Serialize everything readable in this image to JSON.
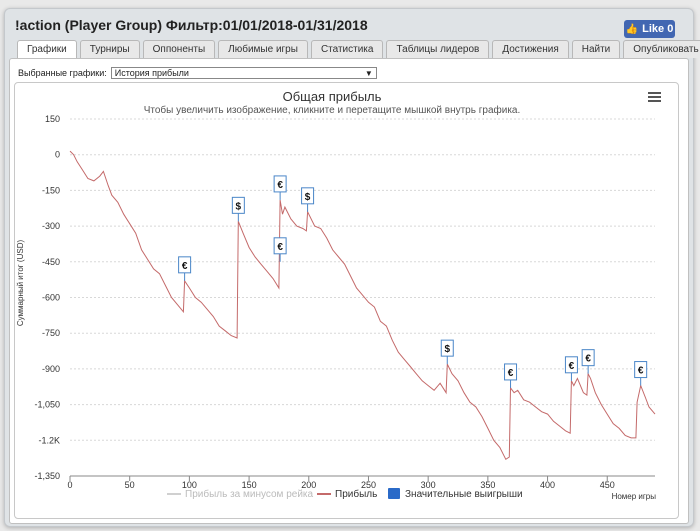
{
  "window": {
    "title": "!action (Player Group) Фильтр:01/01/2018-01/31/2018",
    "like_label": "Like 0"
  },
  "tabs": [
    {
      "label": "Графики",
      "active": true
    },
    {
      "label": "Турниры"
    },
    {
      "label": "Оппоненты"
    },
    {
      "label": "Любимые игры"
    },
    {
      "label": "Статистика"
    },
    {
      "label": "Таблицы лидеров"
    },
    {
      "label": "Достижения"
    },
    {
      "label": "Найти"
    },
    {
      "label": "Опубликовать"
    }
  ],
  "graph_select": {
    "label": "Выбранные графики:",
    "value": "История прибыли"
  },
  "chart_data": {
    "type": "line",
    "title": "Общая прибыль",
    "subtitle": "Чтобы увеличить изображение, кликните и перетащите мышкой внутрь графика.",
    "xlabel": "Номер игры",
    "ylabel": "Суммарный итог (USD)",
    "xlim": [
      0,
      490
    ],
    "ylim": [
      -1350,
      150
    ],
    "x_ticks": [
      0,
      50,
      100,
      150,
      200,
      250,
      300,
      350,
      400,
      450
    ],
    "y_ticks": [
      150,
      0,
      -150,
      -300,
      -450,
      -600,
      -750,
      -900,
      -1050,
      -1200,
      -1350
    ],
    "y_tick_labels": [
      "150",
      "0",
      "-150",
      "-300",
      "-450",
      "-600",
      "-750",
      "-900",
      "-1,050",
      "-1.2K",
      "-1,350"
    ],
    "grid": true,
    "legend_position": "bottom",
    "legend": [
      "Прибыль за минусом рейка",
      "Прибыль",
      "Значительные выигрыши"
    ],
    "series": [
      {
        "name": "Прибыль",
        "color": "#c46a6a",
        "x": [
          0,
          3,
          6,
          10,
          15,
          20,
          25,
          28,
          32,
          35,
          40,
          45,
          50,
          55,
          60,
          65,
          70,
          75,
          80,
          85,
          90,
          95,
          96,
          100,
          105,
          110,
          115,
          120,
          125,
          130,
          135,
          140,
          141,
          145,
          150,
          155,
          160,
          165,
          170,
          175,
          176,
          178,
          180,
          185,
          190,
          195,
          198,
          199,
          205,
          210,
          215,
          220,
          225,
          230,
          235,
          240,
          245,
          250,
          255,
          260,
          265,
          270,
          275,
          280,
          285,
          290,
          295,
          300,
          305,
          310,
          315,
          316,
          320,
          325,
          330,
          335,
          340,
          345,
          350,
          355,
          360,
          365,
          368,
          369,
          372,
          375,
          380,
          385,
          390,
          395,
          400,
          405,
          410,
          415,
          419,
          420,
          422,
          425,
          430,
          433,
          434,
          436,
          440,
          445,
          450,
          455,
          460,
          465,
          470,
          474,
          475,
          478,
          482,
          485,
          490
        ],
        "y": [
          15,
          0,
          -30,
          -60,
          -100,
          -110,
          -90,
          -70,
          -130,
          -170,
          -200,
          -250,
          -290,
          -330,
          -400,
          -440,
          -480,
          -500,
          -550,
          -600,
          -630,
          -660,
          -530,
          -560,
          -600,
          -620,
          -650,
          -680,
          -720,
          -740,
          -760,
          -770,
          -280,
          -330,
          -390,
          -430,
          -460,
          -490,
          -520,
          -560,
          -190,
          -250,
          -220,
          -270,
          -300,
          -310,
          -320,
          -240,
          -300,
          -310,
          -350,
          -400,
          -430,
          -460,
          -510,
          -560,
          -590,
          -620,
          -640,
          -700,
          -720,
          -780,
          -830,
          -860,
          -890,
          -920,
          -950,
          -970,
          -990,
          -960,
          -1000,
          -880,
          -920,
          -950,
          -1000,
          -1040,
          -1060,
          -1100,
          -1150,
          -1200,
          -1230,
          -1280,
          -1270,
          -980,
          -1000,
          -990,
          -1030,
          -1040,
          -1060,
          -1080,
          -1090,
          -1120,
          -1140,
          -1160,
          -1170,
          -950,
          -970,
          -940,
          -1000,
          -1010,
          -920,
          -940,
          -1000,
          -1050,
          -1090,
          -1130,
          -1150,
          -1180,
          -1190,
          -1190,
          -1040,
          -970,
          -1020,
          -1060,
          -1090
        ]
      }
    ],
    "markers": [
      {
        "x": 96,
        "y": -530,
        "symbol": "€"
      },
      {
        "x": 141,
        "y": -280,
        "symbol": "$"
      },
      {
        "x": 176,
        "y": -190,
        "symbol": "€"
      },
      {
        "x": 176,
        "y": -450,
        "symbol": "€"
      },
      {
        "x": 199,
        "y": -240,
        "symbol": "$"
      },
      {
        "x": 316,
        "y": -880,
        "symbol": "$"
      },
      {
        "x": 369,
        "y": -980,
        "symbol": "€"
      },
      {
        "x": 420,
        "y": -950,
        "symbol": "€"
      },
      {
        "x": 434,
        "y": -920,
        "symbol": "€"
      },
      {
        "x": 478,
        "y": -970,
        "symbol": "€"
      }
    ]
  }
}
